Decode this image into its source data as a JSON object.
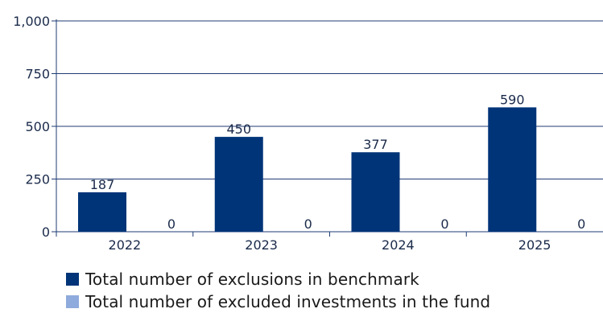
{
  "chart_data": {
    "type": "bar",
    "title": "",
    "xlabel": "",
    "ylabel": "",
    "categories": [
      "2022",
      "2023",
      "2024",
      "2025"
    ],
    "ylim": [
      0,
      1000
    ],
    "yticks": [
      0,
      250,
      500,
      750,
      1000
    ],
    "ytick_labels": [
      "0",
      "250",
      "500",
      "750",
      "1,000"
    ],
    "grid": true,
    "legend_position": "bottom-left",
    "series": [
      {
        "name": "Total number of exclusions in benchmark",
        "values": [
          187,
          450,
          377,
          590
        ],
        "color": "#003478"
      },
      {
        "name": "Total number of excluded investments in the fund",
        "values": [
          0,
          0,
          0,
          0
        ],
        "color": "#8faadc"
      }
    ]
  },
  "colors": {
    "axis": "#1f3b73",
    "grid": "#1f3b73",
    "text": "#1a2a4a"
  }
}
